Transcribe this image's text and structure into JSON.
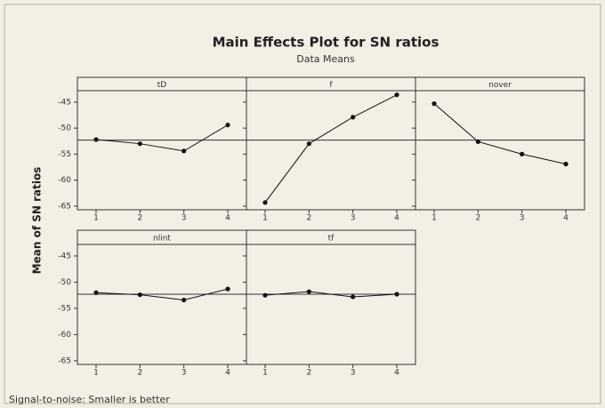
{
  "header": {
    "title": "Main Effects Plot for SN ratios",
    "subtitle": "Data Means"
  },
  "y_label": "Mean of SN ratios",
  "footnote": "Signal-to-noise: Smaller is better",
  "chart_data": [
    {
      "type": "line",
      "title": "tD",
      "categories": [
        "1",
        "2",
        "3",
        "4"
      ],
      "values": [
        -52.2,
        -53.0,
        -54.4,
        -49.4
      ],
      "reference": -52.3,
      "color": "#111111",
      "ylim": [
        -65.7,
        -42.8
      ],
      "yticks": [
        -45,
        -50,
        -55,
        -60,
        -65
      ]
    },
    {
      "type": "line",
      "title": "f",
      "categories": [
        "1",
        "2",
        "3",
        "4"
      ],
      "values": [
        -64.3,
        -53.0,
        -47.9,
        -43.6
      ],
      "reference": -52.3,
      "color": "#111111",
      "ylim": [
        -65.7,
        -42.8
      ],
      "yticks": [
        -45,
        -50,
        -55,
        -60,
        -65
      ]
    },
    {
      "type": "line",
      "title": "nover",
      "categories": [
        "1",
        "2",
        "3",
        "4"
      ],
      "values": [
        -45.3,
        -52.6,
        -55.0,
        -56.9
      ],
      "reference": -52.3,
      "color": "#111111",
      "ylim": [
        -65.7,
        -42.8
      ],
      "yticks": [
        -45,
        -50,
        -55,
        -60,
        -65
      ]
    },
    {
      "type": "line",
      "title": "nlint",
      "categories": [
        "1",
        "2",
        "3",
        "4"
      ],
      "values": [
        -52.0,
        -52.4,
        -53.4,
        -51.3
      ],
      "reference": -52.3,
      "color": "#111111",
      "ylim": [
        -65.7,
        -42.8
      ],
      "yticks": [
        -45,
        -50,
        -55,
        -60,
        -65
      ]
    },
    {
      "type": "line",
      "title": "tf",
      "categories": [
        "1",
        "2",
        "3",
        "4"
      ],
      "values": [
        -52.5,
        -51.8,
        -52.8,
        -52.3
      ],
      "reference": -52.3,
      "color": "#111111",
      "ylim": [
        -65.7,
        -42.8
      ],
      "yticks": [
        -45,
        -50,
        -55,
        -60,
        -65
      ]
    }
  ]
}
